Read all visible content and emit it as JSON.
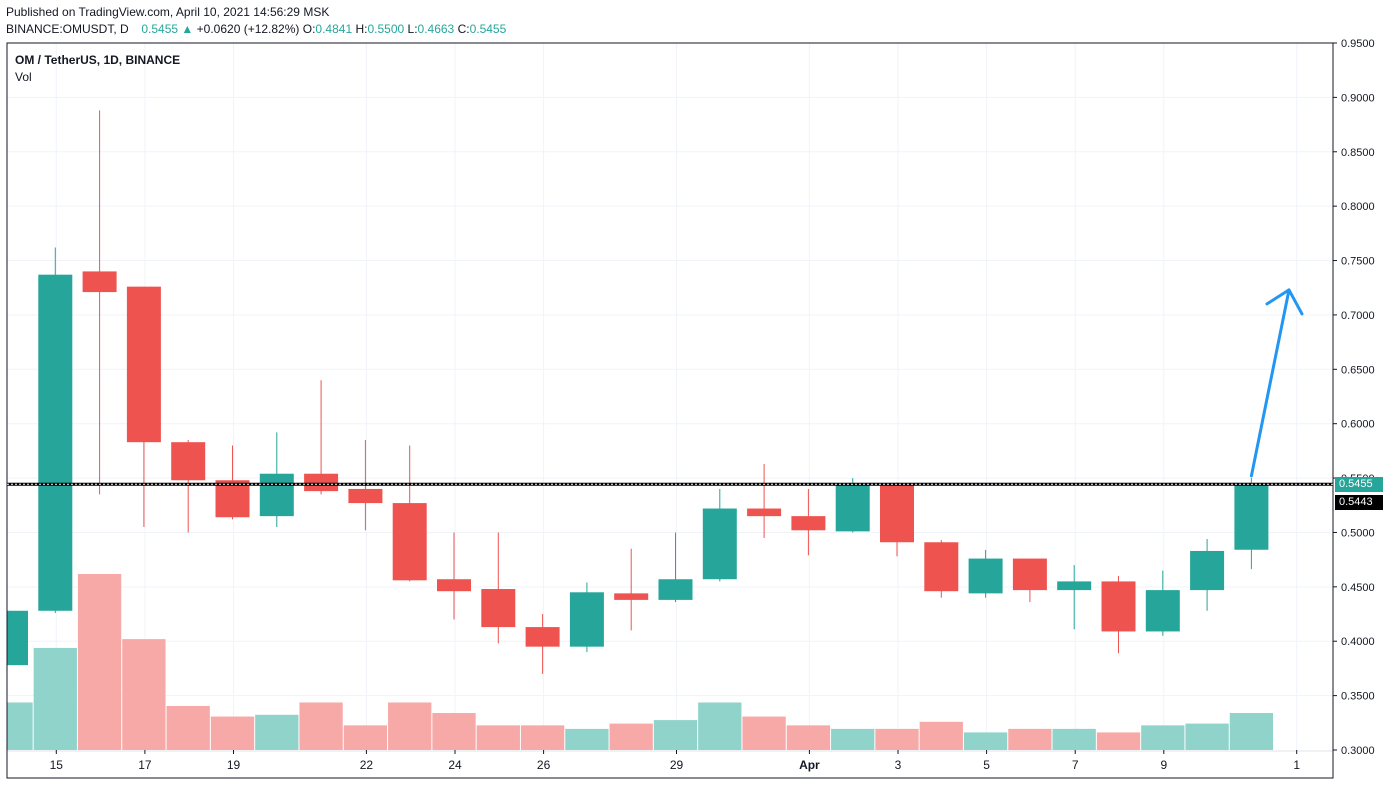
{
  "header": {
    "published": "Published on TradingView.com, April 10, 2021 14:56:29 MSK",
    "symbol": "BINANCE:OMUSDT, D",
    "last": "0.5455",
    "change_arrow": "▲",
    "change": "+0.0620 (+12.82%)",
    "o_label": "O:",
    "o": "0.4841",
    "h_label": "H:",
    "h": "0.5500",
    "l_label": "L:",
    "l": "0.4663",
    "c_label": "C:",
    "c": "0.5455"
  },
  "legend": {
    "title": "OM / TetherUS, 1D, BINANCE",
    "vol": "Vol"
  },
  "price_tags": {
    "last": "0.5455",
    "line": "0.5443"
  },
  "colors": {
    "up": "#26a69a",
    "down": "#ef5350",
    "vol_up": "#8fd3cb",
    "vol_down": "#f7a9a7",
    "arrow": "#2196f3",
    "line": "#000000"
  },
  "chart_data": {
    "type": "candlestick",
    "ylim": [
      0.3,
      0.95
    ],
    "y_ticks": [
      "0.9500",
      "0.9000",
      "0.8500",
      "0.8000",
      "0.7500",
      "0.7000",
      "0.6500",
      "0.6000",
      "0.5500",
      "0.5000",
      "0.4500",
      "0.4000",
      "0.3500",
      "0.3000"
    ],
    "x_tick_labels": [
      {
        "index": 1,
        "label": "15"
      },
      {
        "index": 3,
        "label": "17"
      },
      {
        "index": 5,
        "label": "19"
      },
      {
        "index": 8,
        "label": "22"
      },
      {
        "index": 10,
        "label": "24"
      },
      {
        "index": 12,
        "label": "26"
      },
      {
        "index": 15,
        "label": "29"
      },
      {
        "index": 18,
        "label": "Apr"
      },
      {
        "index": 20,
        "label": "3"
      },
      {
        "index": 22,
        "label": "5"
      },
      {
        "index": 24,
        "label": "7"
      },
      {
        "index": 26,
        "label": "9"
      },
      {
        "index": 29,
        "label": "1"
      }
    ],
    "horizontal_line": 0.5443,
    "candles": [
      {
        "o": 0.378,
        "h": 0.428,
        "l": 0.378,
        "c": 0.428,
        "v": 0.27
      },
      {
        "o": 0.428,
        "h": 0.762,
        "l": 0.426,
        "c": 0.737,
        "v": 0.58
      },
      {
        "o": 0.74,
        "h": 0.888,
        "l": 0.535,
        "c": 0.721,
        "v": 1.0
      },
      {
        "o": 0.726,
        "h": 0.726,
        "l": 0.505,
        "c": 0.583,
        "v": 0.63
      },
      {
        "o": 0.583,
        "h": 0.585,
        "l": 0.5,
        "c": 0.548,
        "v": 0.25
      },
      {
        "o": 0.548,
        "h": 0.58,
        "l": 0.512,
        "c": 0.514,
        "v": 0.19
      },
      {
        "o": 0.515,
        "h": 0.592,
        "l": 0.505,
        "c": 0.554,
        "v": 0.2
      },
      {
        "o": 0.554,
        "h": 0.64,
        "l": 0.535,
        "c": 0.538,
        "v": 0.27
      },
      {
        "o": 0.54,
        "h": 0.585,
        "l": 0.502,
        "c": 0.527,
        "v": 0.14
      },
      {
        "o": 0.527,
        "h": 0.58,
        "l": 0.455,
        "c": 0.456,
        "v": 0.27
      },
      {
        "o": 0.457,
        "h": 0.5,
        "l": 0.42,
        "c": 0.446,
        "v": 0.21
      },
      {
        "o": 0.448,
        "h": 0.5,
        "l": 0.398,
        "c": 0.413,
        "v": 0.14
      },
      {
        "o": 0.413,
        "h": 0.425,
        "l": 0.37,
        "c": 0.395,
        "v": 0.14
      },
      {
        "o": 0.395,
        "h": 0.454,
        "l": 0.39,
        "c": 0.445,
        "v": 0.12
      },
      {
        "o": 0.444,
        "h": 0.485,
        "l": 0.41,
        "c": 0.438,
        "v": 0.15
      },
      {
        "o": 0.438,
        "h": 0.5,
        "l": 0.436,
        "c": 0.457,
        "v": 0.17
      },
      {
        "o": 0.457,
        "h": 0.54,
        "l": 0.455,
        "c": 0.522,
        "v": 0.27
      },
      {
        "o": 0.522,
        "h": 0.563,
        "l": 0.495,
        "c": 0.515,
        "v": 0.19
      },
      {
        "o": 0.515,
        "h": 0.54,
        "l": 0.479,
        "c": 0.502,
        "v": 0.14
      },
      {
        "o": 0.501,
        "h": 0.55,
        "l": 0.5,
        "c": 0.544,
        "v": 0.12
      },
      {
        "o": 0.544,
        "h": 0.546,
        "l": 0.478,
        "c": 0.491,
        "v": 0.12
      },
      {
        "o": 0.491,
        "h": 0.493,
        "l": 0.44,
        "c": 0.446,
        "v": 0.16
      },
      {
        "o": 0.444,
        "h": 0.484,
        "l": 0.44,
        "c": 0.476,
        "v": 0.1
      },
      {
        "o": 0.476,
        "h": 0.476,
        "l": 0.436,
        "c": 0.447,
        "v": 0.12
      },
      {
        "o": 0.447,
        "h": 0.47,
        "l": 0.411,
        "c": 0.455,
        "v": 0.12
      },
      {
        "o": 0.455,
        "h": 0.46,
        "l": 0.389,
        "c": 0.409,
        "v": 0.1
      },
      {
        "o": 0.409,
        "h": 0.465,
        "l": 0.405,
        "c": 0.447,
        "v": 0.14
      },
      {
        "o": 0.447,
        "h": 0.494,
        "l": 0.428,
        "c": 0.483,
        "v": 0.15
      },
      {
        "o": 0.4841,
        "h": 0.55,
        "l": 0.4663,
        "c": 0.5455,
        "v": 0.21
      }
    ]
  }
}
